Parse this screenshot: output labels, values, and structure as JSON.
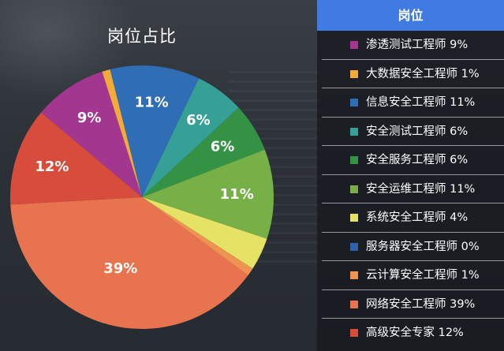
{
  "chart_data": {
    "type": "pie",
    "title": "岗位占比",
    "legend_title": "岗位",
    "legend_placement": "right",
    "slices": [
      {
        "name": "渗透测试工程师",
        "value": 9,
        "percent_label": "9%",
        "color": "#a3368f",
        "show_label": true
      },
      {
        "name": "大数据安全工程师",
        "value": 1,
        "percent_label": "1%",
        "color": "#f2ab3b",
        "show_label": false
      },
      {
        "name": "信息安全工程师",
        "value": 11,
        "percent_label": "11%",
        "color": "#2f6db5",
        "show_label": true
      },
      {
        "name": "安全测试工程师",
        "value": 6,
        "percent_label": "6%",
        "color": "#37a096",
        "show_label": true
      },
      {
        "name": "安全服务工程师",
        "value": 6,
        "percent_label": "6%",
        "color": "#349245",
        "show_label": true
      },
      {
        "name": "安全运维工程师",
        "value": 11,
        "percent_label": "11%",
        "color": "#76b046",
        "show_label": true
      },
      {
        "name": "系统安全工程师",
        "value": 4,
        "percent_label": "4%",
        "color": "#e6e265",
        "show_label": false
      },
      {
        "name": "服务器安全工程师",
        "value": 0,
        "percent_label": "0%",
        "color": "#2d62aa",
        "show_label": false
      },
      {
        "name": "云计算安全工程师",
        "value": 1,
        "percent_label": "1%",
        "color": "#ef9352",
        "show_label": false
      },
      {
        "name": "网络安全工程师",
        "value": 39,
        "percent_label": "39%",
        "color": "#e8744f",
        "show_label": true
      },
      {
        "name": "高级安全专家",
        "value": 12,
        "percent_label": "12%",
        "color": "#d84c3c",
        "show_label": true
      }
    ]
  }
}
